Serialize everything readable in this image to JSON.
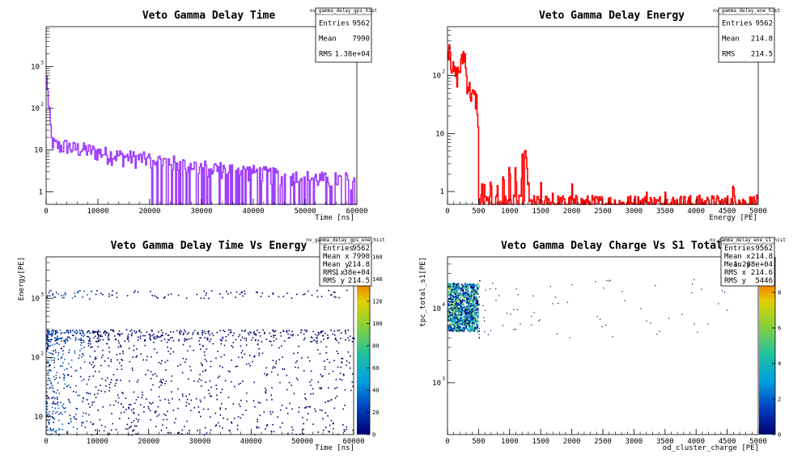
{
  "colors": {
    "hist1": "#a040ff",
    "hist2": "#ff0000",
    "frame": "#000000",
    "stats_bg": "#ffffff"
  },
  "chart_data": [
    {
      "type": "histogram",
      "title": "Veto Gamma Delay Time",
      "xlabel": "Time [ns]",
      "ylabel": "",
      "log_y": true,
      "xlim": [
        0,
        60000
      ],
      "ylim": [
        0.5,
        9000
      ],
      "x_ticks": [
        "0",
        "10000",
        "20000",
        "30000",
        "40000",
        "50000",
        "60000"
      ],
      "y_ticks": [
        "1",
        "10",
        "10",
        "10"
      ],
      "y_tick_exp": [
        "",
        "",
        "2",
        "3"
      ],
      "y_tick_values": [
        1,
        10,
        100,
        1000
      ],
      "stats": {
        "name": "nv_gamma_delay_gps_hist",
        "rows": [
          {
            "label": "Entries",
            "value": "9562"
          },
          {
            "label": "Mean",
            "value": "7990"
          },
          {
            "label": "RMS",
            "value": "1.38e+04"
          }
        ]
      },
      "series": [
        {
          "points": [
            [
              0,
              600
            ],
            [
              200,
              450
            ],
            [
              500,
              100
            ],
            [
              1000,
              18
            ],
            [
              1500,
              14
            ],
            [
              2000,
              13
            ],
            [
              3000,
              12
            ],
            [
              4000,
              13
            ],
            [
              5000,
              11
            ],
            [
              6000,
              11
            ],
            [
              8000,
              10
            ],
            [
              10000,
              9
            ],
            [
              12000,
              8
            ],
            [
              15000,
              7
            ],
            [
              20000,
              6
            ],
            [
              25000,
              5
            ],
            [
              30000,
              4
            ],
            [
              35000,
              3.5
            ],
            [
              40000,
              3
            ],
            [
              45000,
              2.5
            ],
            [
              50000,
              2.2
            ],
            [
              55000,
              2
            ],
            [
              60000,
              2
            ]
          ]
        }
      ]
    },
    {
      "type": "histogram",
      "title": "Veto Gamma Delay Energy",
      "xlabel": "Energy [PE]",
      "ylabel": "",
      "log_y": true,
      "xlim": [
        0,
        5000
      ],
      "ylim": [
        0.6,
        700
      ],
      "x_ticks": [
        "0",
        "500",
        "1000",
        "1500",
        "2000",
        "2500",
        "3000",
        "3500",
        "4000",
        "4500",
        "5000"
      ],
      "y_ticks": [
        "1",
        "10",
        "10"
      ],
      "y_tick_exp": [
        "",
        "",
        "2"
      ],
      "y_tick_values": [
        1,
        10,
        100
      ],
      "stats": {
        "name": "nv_gamma_delay_ene_hist",
        "rows": [
          {
            "label": "Entries",
            "value": "9562"
          },
          {
            "label": "Mean",
            "value": "214.8"
          },
          {
            "label": "RMS",
            "value": "214.5"
          }
        ]
      },
      "series": [
        {
          "points": [
            [
              0,
              200
            ],
            [
              30,
              400
            ],
            [
              60,
              180
            ],
            [
              100,
              110
            ],
            [
              150,
              100
            ],
            [
              200,
              130
            ],
            [
              240,
              180
            ],
            [
              260,
              250
            ],
            [
              280,
              220
            ],
            [
              300,
              100
            ],
            [
              350,
              60
            ],
            [
              400,
              45
            ],
            [
              450,
              40
            ],
            [
              480,
              35
            ],
            [
              500,
              0.6
            ],
            [
              550,
              1
            ],
            [
              600,
              1
            ],
            [
              700,
              1
            ],
            [
              800,
              1
            ],
            [
              900,
              2
            ],
            [
              1000,
              2
            ],
            [
              1100,
              2
            ],
            [
              1200,
              3
            ],
            [
              1250,
              4
            ],
            [
              1280,
              3
            ],
            [
              1300,
              1
            ],
            [
              1500,
              1
            ],
            [
              1700,
              1
            ],
            [
              2000,
              1
            ],
            [
              2500,
              1
            ],
            [
              3200,
              1
            ],
            [
              3500,
              1
            ],
            [
              3800,
              1
            ],
            [
              4200,
              1
            ],
            [
              4600,
              1
            ],
            [
              4700,
              1
            ]
          ]
        }
      ]
    },
    {
      "type": "heatmap",
      "title": "Veto Gamma Delay Time Vs Energy",
      "xlabel": "Time [ns]",
      "ylabel": "Energy[PE]",
      "log_y": true,
      "xlim": [
        0,
        60000
      ],
      "ylim": [
        5,
        5000
      ],
      "x_ticks": [
        "0",
        "10000",
        "20000",
        "30000",
        "40000",
        "50000",
        "60000"
      ],
      "y_ticks": [
        "10",
        "10",
        "10"
      ],
      "y_tick_exp": [
        "",
        "2",
        "3"
      ],
      "y_tick_values": [
        10,
        100,
        1000
      ],
      "zlim": [
        0,
        160
      ],
      "z_ticks": [
        "0",
        "20",
        "40",
        "60",
        "80",
        "100",
        "120",
        "140",
        "160"
      ],
      "stats": {
        "name": "nv_gamma_delay_gps_ene_hist",
        "rows": [
          {
            "label": "Entries",
            "value": "9562"
          },
          {
            "label": "Mean x",
            "value": "7990"
          },
          {
            "label": "Mean y",
            "value": "214.8"
          },
          {
            "label": "RMS x",
            "value": "1.38e+04"
          },
          {
            "label": "RMS y",
            "value": "214.5"
          }
        ]
      }
    },
    {
      "type": "heatmap",
      "title": "Veto Gamma Delay Charge Vs S1 Total",
      "xlabel": "od_cluster_charge [PE]",
      "ylabel": "tpc_total_s1[PE]",
      "log_y": true,
      "xlim": [
        0,
        5000
      ],
      "ylim": [
        200,
        50000
      ],
      "x_ticks": [
        "0",
        "500",
        "1000",
        "1500",
        "2000",
        "2500",
        "3000",
        "3500",
        "4000",
        "4500",
        "5000"
      ],
      "y_ticks": [
        "10",
        "10"
      ],
      "y_tick_exp": [
        "3",
        "4"
      ],
      "y_tick_values": [
        1000,
        10000
      ],
      "zlim": [
        0,
        10
      ],
      "z_ticks": [
        "0",
        "2",
        "4",
        "6",
        "8"
      ],
      "stats": {
        "name": "nv_gamma_delay_ene_s1_hist",
        "rows": [
          {
            "label": "Entries",
            "value": "9562"
          },
          {
            "label": "Mean x",
            "value": "214.8"
          },
          {
            "label": "Mean y",
            "value": "1.288e+04"
          },
          {
            "label": "RMS x",
            "value": "214.6"
          },
          {
            "label": "RMS y",
            "value": "5446"
          }
        ]
      }
    }
  ]
}
